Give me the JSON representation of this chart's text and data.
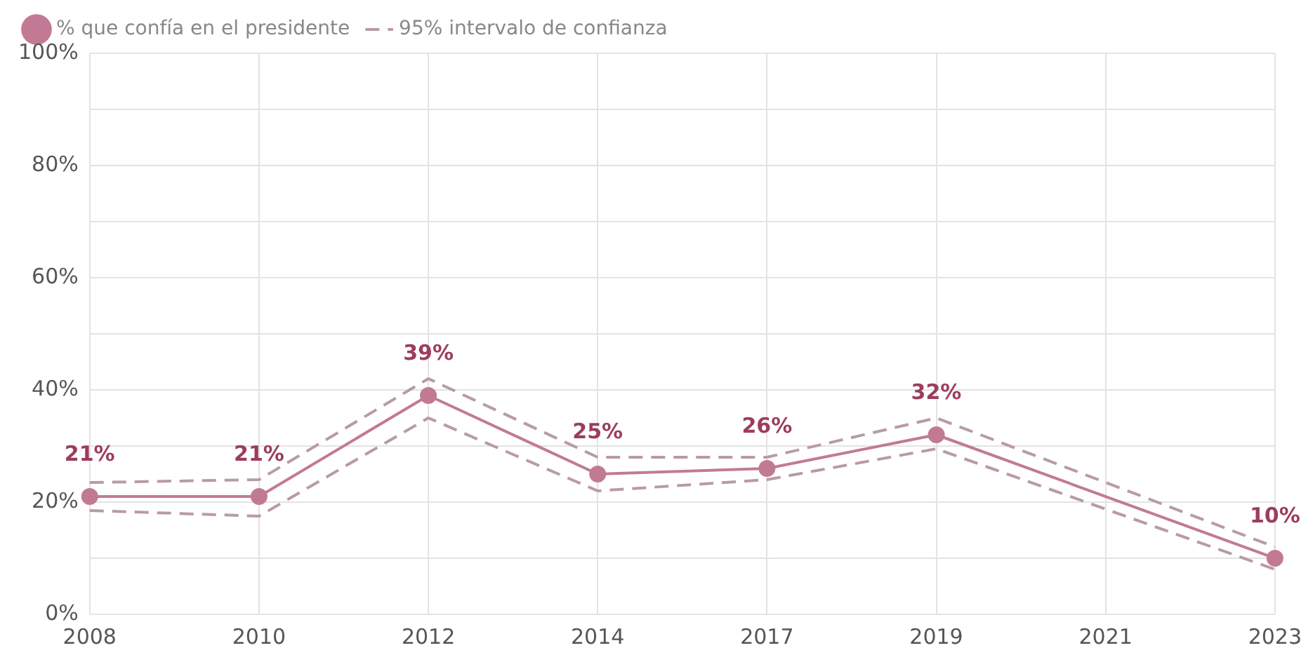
{
  "chart_data": {
    "type": "line",
    "categories": [
      "2008",
      "2010",
      "2012",
      "2014",
      "2017",
      "2019",
      "2021",
      "2023"
    ],
    "series": [
      {
        "name": "% que confía en el presidente",
        "color": "#c27a94",
        "marker": "circle",
        "line_style": "solid",
        "values": [
          21,
          21,
          39,
          25,
          26,
          32,
          null,
          10
        ],
        "value_labels": [
          "21%",
          "21%",
          "39%",
          "25%",
          "26%",
          "32%",
          null,
          "10%"
        ]
      },
      {
        "name": "95% intervalo de confianza",
        "color": "#b79ba6",
        "marker": "none",
        "line_style": "dashed",
        "values": [
          23.5,
          24,
          42,
          28,
          28,
          35,
          null,
          12
        ]
      },
      {
        "color": "#b79ba6",
        "marker": "none",
        "line_style": "dashed",
        "values": [
          18.5,
          17.5,
          35,
          22,
          24,
          29.5,
          null,
          8
        ]
      }
    ],
    "ylim": [
      0,
      100
    ],
    "yticks": [
      {
        "value": 0,
        "label": "0%"
      },
      {
        "value": 10,
        "label": null
      },
      {
        "value": 20,
        "label": "20%"
      },
      {
        "value": 30,
        "label": null
      },
      {
        "value": 40,
        "label": "40%"
      },
      {
        "value": 50,
        "label": null
      },
      {
        "value": 60,
        "label": "60%"
      },
      {
        "value": 70,
        "label": null
      },
      {
        "value": 80,
        "label": "80%"
      },
      {
        "value": 90,
        "label": null
      },
      {
        "value": 100,
        "label": "100%"
      }
    ],
    "grid": true,
    "legend": "top left"
  }
}
